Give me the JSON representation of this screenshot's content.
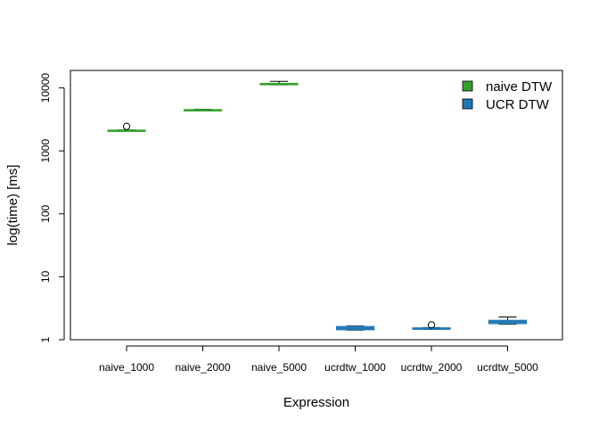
{
  "chart_data": {
    "type": "boxplot",
    "title": "",
    "xlabel": "Expression",
    "ylabel": "log(time) [ms]",
    "y_scale": "log10",
    "ylim": [
      1,
      18000
    ],
    "y_ticks": [
      1,
      10,
      100,
      1000,
      10000
    ],
    "y_tick_labels": [
      "1",
      "10",
      "100",
      "1000",
      "10000"
    ],
    "categories": [
      "naive_1000",
      "naive_2000",
      "naive_5000",
      "ucrdtw_1000",
      "ucrdtw_2000",
      "ucrdtw_5000"
    ],
    "boxes": [
      {
        "category": "naive_1000",
        "series": "naive DTW",
        "whisker_low": 2060,
        "q1": 2070,
        "median": 2090,
        "q3": 2120,
        "whisker_high": 2150,
        "outliers": [
          2450
        ]
      },
      {
        "category": "naive_2000",
        "series": "naive DTW",
        "whisker_low": 4350,
        "q1": 4380,
        "median": 4420,
        "q3": 4470,
        "whisker_high": 4560,
        "outliers": []
      },
      {
        "category": "naive_5000",
        "series": "naive DTW",
        "whisker_low": 11200,
        "q1": 11300,
        "median": 11500,
        "q3": 11750,
        "whisker_high": 12700,
        "outliers": []
      },
      {
        "category": "ucrdtw_1000",
        "series": "UCR DTW",
        "whisker_low": 1.42,
        "q1": 1.44,
        "median": 1.52,
        "q3": 1.62,
        "whisker_high": 1.65,
        "outliers": []
      },
      {
        "category": "ucrdtw_2000",
        "series": "UCR DTW",
        "whisker_low": 1.46,
        "q1": 1.48,
        "median": 1.5,
        "q3": 1.54,
        "whisker_high": 1.56,
        "outliers": [
          1.72
        ]
      },
      {
        "category": "ucrdtw_5000",
        "series": "UCR DTW",
        "whisker_low": 1.76,
        "q1": 1.8,
        "median": 1.92,
        "q3": 2.03,
        "whisker_high": 2.3,
        "outliers": []
      }
    ],
    "legend": {
      "position": "top-right",
      "entries": [
        {
          "label": "naive DTW",
          "color": "#33a02c"
        },
        {
          "label": "UCR DTW",
          "color": "#1f78b4"
        }
      ]
    },
    "colors": {
      "naive DTW": {
        "fill": "#33a02c",
        "line": "#33a02c"
      },
      "UCR DTW": {
        "fill": "#a6cee3",
        "line": "#1f78b4"
      }
    },
    "grid": false
  }
}
